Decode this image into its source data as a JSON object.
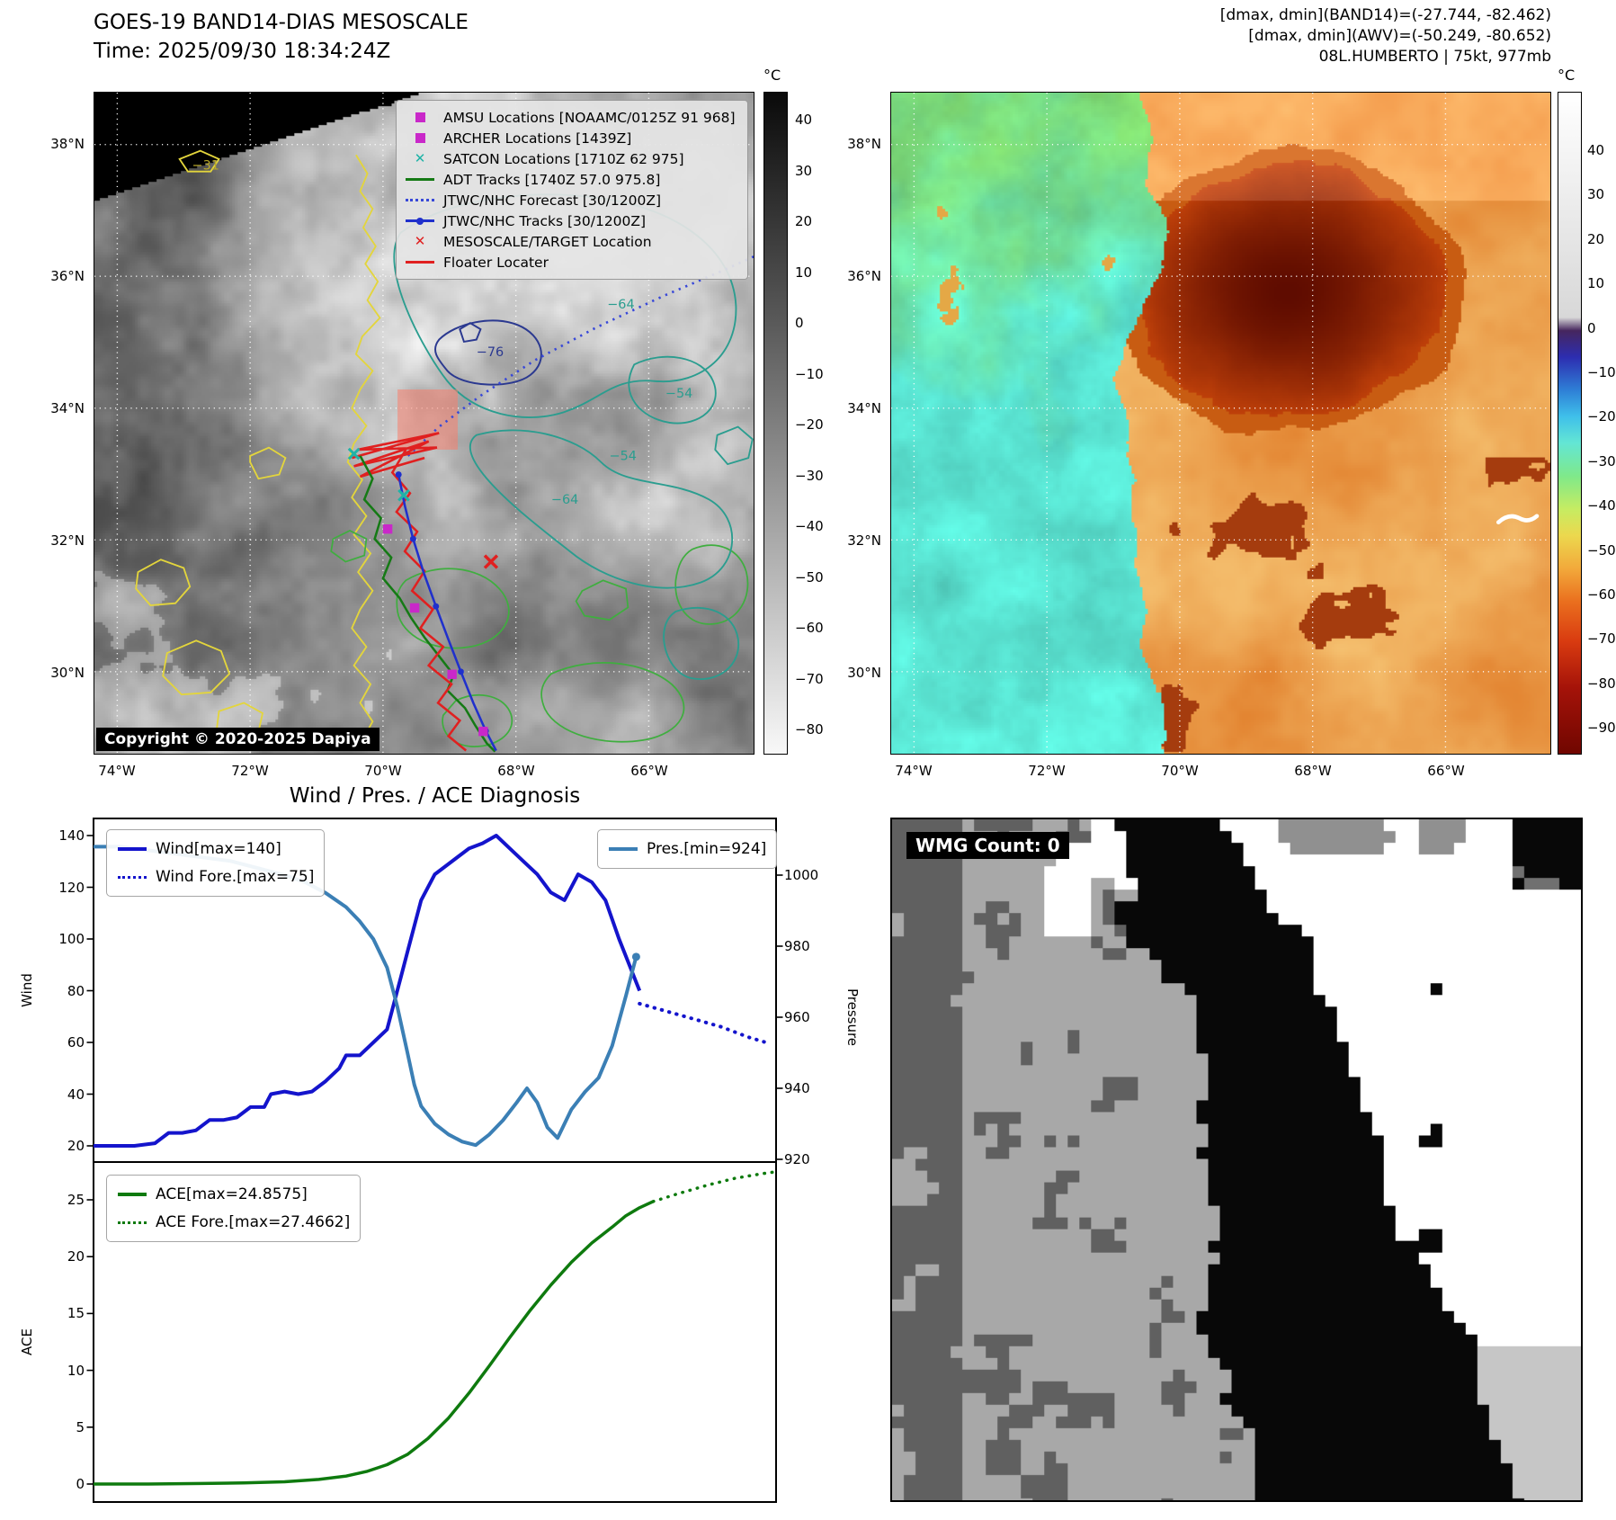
{
  "band14": {
    "title": "GOES-19 BAND14-DIAS MESOSCALE",
    "time": "Time: 2025/09/30 18:34:24Z",
    "copyright": "Copyright © 2020-2025 Dapiya",
    "colorbar_unit": "°C",
    "colorbar_ticks": [
      "40",
      "30",
      "20",
      "10",
      "0",
      "−10",
      "−20",
      "−30",
      "−40",
      "−50",
      "−60",
      "−70",
      "−80"
    ],
    "colorbar_gradient": [
      "#0a0a0a 0%",
      "#5a5a5a 35%",
      "#9c9c9c 62%",
      "#f8f8f8 100%"
    ],
    "lat_ticks": [
      "38°N",
      "36°N",
      "34°N",
      "32°N",
      "30°N"
    ],
    "lon_ticks": [
      "74°W",
      "72°W",
      "70°W",
      "68°W",
      "66°W"
    ],
    "contour_labels": [
      "−31",
      "−76",
      "−64",
      "−54",
      "−54",
      "−64"
    ],
    "legend": [
      {
        "label": "AMSU Locations [NOAAMC/0125Z 91 968]",
        "marker": "square",
        "color": "#c928c9"
      },
      {
        "label": "ARCHER Locations [1439Z]",
        "marker": "square",
        "color": "#c928c9"
      },
      {
        "label": "SATCON Locations [1710Z 62 975]",
        "marker": "x",
        "color": "#1fb3a7"
      },
      {
        "label": "ADT Tracks [1740Z 57.0 975.8]",
        "marker": "line",
        "color": "#157a15"
      },
      {
        "label": "JTWC/NHC Forecast [30/1200Z]",
        "marker": "dotted",
        "color": "#3848d8"
      },
      {
        "label": "JTWC/NHC Tracks [30/1200Z]",
        "marker": "line-dot",
        "color": "#2030cc"
      },
      {
        "label": "MESOSCALE/TARGET Location",
        "marker": "x",
        "color": "#e02020"
      },
      {
        "label": "Floater Locater",
        "marker": "line",
        "color": "#e02020"
      }
    ]
  },
  "awv": {
    "header_lines": [
      "[dmax, dmin](BAND14)=(-27.744, -82.462)",
      "[dmax, dmin](AWV)=(-50.249, -80.652)",
      "08L.HUMBERTO | 75kt, 977mb"
    ],
    "colorbar_unit": "°C",
    "colorbar_ticks": [
      "40",
      "30",
      "20",
      "10",
      "0",
      "−10",
      "−20",
      "−30",
      "−40",
      "−50",
      "−60",
      "−70",
      "−80",
      "−90"
    ],
    "colorbar_gradient": [
      "#ffffff 0%",
      "#d8d8d8 34%",
      "#46265e 36%",
      "#2d2db0 40%",
      "#2e7fd6 45%",
      "#3fc0ea 49%",
      "#63e6d4 53%",
      "#7fe98a 58%",
      "#c6ec62 63%",
      "#ecd84e 67%",
      "#f2a93b 72%",
      "#ea6f1e 77%",
      "#d93b10 83%",
      "#a51309 90%",
      "#700600 100%"
    ],
    "lat_ticks": [
      "38°N",
      "36°N",
      "34°N",
      "32°N",
      "30°N"
    ],
    "lon_ticks": [
      "74°W",
      "72°W",
      "70°W",
      "68°W",
      "66°W"
    ]
  },
  "diagnosis": {
    "title": "Wind / Pres. / ACE Diagnosis",
    "ylabel_wind": "Wind",
    "ylabel_pressure": "Pressure",
    "ylabel_ace": "ACE",
    "wind_ticks": [
      "140",
      "120",
      "100",
      "80",
      "60",
      "40",
      "20"
    ],
    "pressure_ticks": [
      "1000",
      "980",
      "960",
      "940",
      "920"
    ],
    "ace_ticks": [
      "25",
      "20",
      "15",
      "10",
      "5",
      "0"
    ],
    "legend_wind": [
      {
        "label": "Wind[max=140]",
        "style": "solid",
        "color": "#1414cc"
      },
      {
        "label": "Wind Fore.[max=75]",
        "style": "dotted",
        "color": "#1414cc"
      }
    ],
    "legend_pres": [
      {
        "label": "Pres.[min=924]",
        "style": "solid",
        "color": "#3b7fb5"
      }
    ],
    "legend_ace": [
      {
        "label": "ACE[max=24.8575]",
        "style": "solid",
        "color": "#0e7a0e"
      },
      {
        "label": "ACE Fore.[max=27.4662]",
        "style": "dotted",
        "color": "#0e7a0e"
      }
    ]
  },
  "wmg": {
    "label": "WMG Count: 0"
  },
  "chart_data": [
    {
      "type": "line",
      "title": "Wind / Pres. / ACE Diagnosis — Wind & Pressure panel",
      "x_axis": "time (percent of displayed record, 0-100)",
      "y_axes": {
        "wind": {
          "label": "Wind",
          "ticks": [
            140,
            120,
            100,
            80,
            60,
            40,
            20
          ],
          "ylim": [
            14,
            146.5
          ]
        },
        "pressure": {
          "label": "Pressure",
          "ticks": [
            1000,
            980,
            960,
            940,
            920
          ],
          "ylim": [
            919,
            1016
          ]
        }
      },
      "legend_position": "upper left / upper right",
      "series": [
        {
          "name": "Wind",
          "axis": "wind",
          "color": "#1414cc",
          "style": "solid",
          "width": 4,
          "x": [
            0,
            3,
            6,
            9,
            11,
            13,
            15,
            17,
            19,
            21,
            23,
            25,
            26,
            28,
            30,
            32,
            34,
            36,
            37,
            39,
            41,
            43,
            44,
            45,
            46,
            47,
            48,
            50,
            52,
            54,
            55,
            57,
            59,
            61,
            63,
            65,
            67,
            69,
            71,
            73,
            75,
            77,
            78.5,
            80
          ],
          "y": [
            20,
            20,
            20,
            21,
            25,
            25,
            26,
            30,
            30,
            31,
            35,
            35,
            40,
            41,
            40,
            41,
            45,
            50,
            55,
            55,
            60,
            65,
            75,
            85,
            95,
            105,
            115,
            125,
            129,
            133,
            135,
            137,
            140,
            135,
            130,
            125,
            118,
            115,
            125,
            122,
            115,
            100,
            90,
            80
          ]
        },
        {
          "name": "Wind Fore.",
          "axis": "wind",
          "color": "#1414cc",
          "style": "dotted",
          "width": 4,
          "x": [
            80,
            84,
            88,
            92,
            96,
            98.5
          ],
          "y": [
            75,
            72,
            69,
            66,
            62,
            60
          ]
        },
        {
          "name": "Pres.",
          "axis": "pressure",
          "color": "#3b7fb5",
          "style": "solid",
          "width": 4,
          "cap": true,
          "x": [
            0,
            4,
            8,
            12,
            16,
            20,
            24,
            28,
            31,
            34,
            37,
            39,
            41,
            43,
            44.5,
            46,
            47,
            48,
            50,
            52,
            54,
            56,
            58,
            60,
            62,
            63.5,
            65,
            66.5,
            68,
            70,
            72,
            74,
            76,
            78,
            79.5
          ],
          "y": [
            1008,
            1008,
            1007,
            1006,
            1005,
            1004,
            1002,
            1000,
            998,
            995,
            991,
            987,
            982,
            974,
            963,
            950,
            941,
            935,
            930,
            927,
            925,
            924,
            927,
            931,
            936,
            940,
            936,
            929,
            926,
            934,
            939,
            943,
            952,
            966,
            977
          ]
        }
      ]
    },
    {
      "type": "line",
      "title": "Wind / Pres. / ACE Diagnosis — ACE panel",
      "x_axis": "time (percent of displayed record, 0-100)",
      "y_axes": {
        "ace": {
          "label": "ACE",
          "ticks": [
            25,
            20,
            15,
            10,
            5,
            0
          ],
          "ylim": [
            -1.6,
            28.3
          ]
        }
      },
      "legend_position": "upper left",
      "series": [
        {
          "name": "ACE",
          "axis": "ace",
          "color": "#0e7a0e",
          "style": "solid",
          "width": 3.5,
          "x": [
            0,
            8,
            16,
            22,
            28,
            33,
            37,
            40,
            43,
            46,
            49,
            52,
            55,
            58,
            61,
            64,
            67,
            70,
            73,
            76,
            78,
            80,
            82
          ],
          "y": [
            0,
            0,
            0.05,
            0.1,
            0.2,
            0.4,
            0.7,
            1.1,
            1.7,
            2.6,
            4,
            5.8,
            8,
            10.4,
            12.9,
            15.3,
            17.5,
            19.5,
            21.2,
            22.6,
            23.6,
            24.3,
            24.8575
          ]
        },
        {
          "name": "ACE Fore.",
          "axis": "ace",
          "color": "#0e7a0e",
          "style": "dotted",
          "width": 3.5,
          "x": [
            82,
            86,
            90,
            94,
            98,
            100
          ],
          "y": [
            24.8575,
            25.6,
            26.3,
            26.9,
            27.3,
            27.4662
          ]
        }
      ]
    }
  ]
}
